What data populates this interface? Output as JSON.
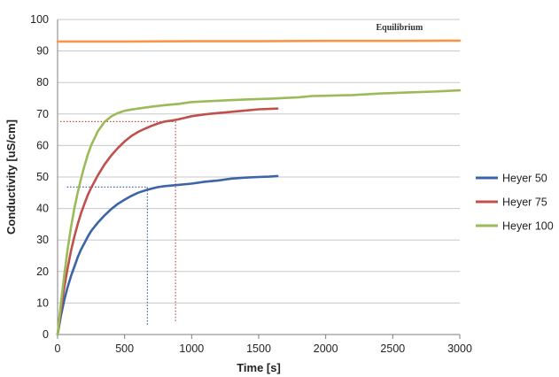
{
  "chart_data": {
    "type": "line",
    "title": "",
    "xlabel": "Time [s]",
    "ylabel": "Conductivity [uS/cm]",
    "xlim": [
      0,
      3000
    ],
    "ylim": [
      0,
      100
    ],
    "x_ticks": [
      0,
      500,
      1000,
      1500,
      2000,
      2500,
      3000
    ],
    "y_ticks": [
      0,
      10,
      20,
      30,
      40,
      50,
      60,
      70,
      80,
      90,
      100
    ],
    "grid": "horizontal",
    "legend_position": "right",
    "series": [
      {
        "name": "Heyer 50",
        "color": "#3b65a8",
        "points": [
          [
            0,
            0
          ],
          [
            25,
            6
          ],
          [
            50,
            11
          ],
          [
            75,
            15
          ],
          [
            100,
            18.5
          ],
          [
            125,
            21.5
          ],
          [
            150,
            24.5
          ],
          [
            175,
            27
          ],
          [
            200,
            29
          ],
          [
            225,
            31
          ],
          [
            250,
            32.8
          ],
          [
            300,
            35.5
          ],
          [
            350,
            37.8
          ],
          [
            400,
            39.8
          ],
          [
            450,
            41.5
          ],
          [
            500,
            42.8
          ],
          [
            550,
            44
          ],
          [
            600,
            45
          ],
          [
            650,
            45.7
          ],
          [
            700,
            46.3
          ],
          [
            750,
            46.8
          ],
          [
            800,
            47.1
          ],
          [
            900,
            47.5
          ],
          [
            1000,
            47.9
          ],
          [
            1100,
            48.5
          ],
          [
            1200,
            48.9
          ],
          [
            1300,
            49.5
          ],
          [
            1400,
            49.8
          ],
          [
            1500,
            50
          ],
          [
            1580,
            50.1
          ],
          [
            1640,
            50.3
          ]
        ]
      },
      {
        "name": "Heyer 75",
        "color": "#c0504d",
        "points": [
          [
            0,
            0
          ],
          [
            25,
            8
          ],
          [
            50,
            15
          ],
          [
            75,
            21
          ],
          [
            100,
            26.5
          ],
          [
            125,
            31
          ],
          [
            150,
            35
          ],
          [
            175,
            38.5
          ],
          [
            200,
            41.5
          ],
          [
            225,
            44.2
          ],
          [
            250,
            46.5
          ],
          [
            300,
            50.5
          ],
          [
            350,
            54
          ],
          [
            400,
            56.8
          ],
          [
            450,
            59.2
          ],
          [
            500,
            61.3
          ],
          [
            550,
            63
          ],
          [
            600,
            64.3
          ],
          [
            650,
            65.3
          ],
          [
            700,
            66.2
          ],
          [
            750,
            67
          ],
          [
            800,
            67.6
          ],
          [
            850,
            67.9
          ],
          [
            900,
            68.3
          ],
          [
            950,
            68.8
          ],
          [
            1000,
            69.3
          ],
          [
            1100,
            69.9
          ],
          [
            1200,
            70.3
          ],
          [
            1300,
            70.7
          ],
          [
            1400,
            71.1
          ],
          [
            1500,
            71.5
          ],
          [
            1640,
            71.7
          ]
        ]
      },
      {
        "name": "Heyer 100",
        "color": "#9bbb59",
        "points": [
          [
            0,
            0
          ],
          [
            25,
            10
          ],
          [
            50,
            19
          ],
          [
            75,
            27
          ],
          [
            100,
            34
          ],
          [
            125,
            40
          ],
          [
            150,
            45
          ],
          [
            175,
            49.5
          ],
          [
            200,
            53.5
          ],
          [
            225,
            57
          ],
          [
            250,
            60
          ],
          [
            300,
            64.5
          ],
          [
            350,
            67.5
          ],
          [
            400,
            69.2
          ],
          [
            450,
            70.3
          ],
          [
            500,
            71
          ],
          [
            550,
            71.4
          ],
          [
            600,
            71.7
          ],
          [
            700,
            72.3
          ],
          [
            800,
            72.8
          ],
          [
            900,
            73.2
          ],
          [
            1000,
            73.8
          ],
          [
            1200,
            74.2
          ],
          [
            1400,
            74.6
          ],
          [
            1600,
            74.9
          ],
          [
            1800,
            75.3
          ],
          [
            1900,
            75.7
          ],
          [
            2000,
            75.8
          ],
          [
            2200,
            76
          ],
          [
            2400,
            76.5
          ],
          [
            2600,
            76.8
          ],
          [
            2800,
            77.1
          ],
          [
            3000,
            77.5
          ]
        ]
      },
      {
        "name": "Equilibrium",
        "color": "#f79646",
        "points": [
          [
            0,
            93
          ],
          [
            500,
            93
          ],
          [
            1000,
            93.1
          ],
          [
            1500,
            93.1
          ],
          [
            2000,
            93.2
          ],
          [
            2500,
            93.2
          ],
          [
            3000,
            93.3
          ]
        ]
      }
    ],
    "reference_lines": [
      {
        "series": "Heyer 50",
        "color": "#3b65a8",
        "x": 670,
        "y": 46.8,
        "x_from": 70,
        "y_from": 3
      },
      {
        "series": "Heyer 75",
        "color": "#c0504d",
        "x": 880,
        "y": 67.6,
        "x_from": 20,
        "y_from": 4
      }
    ],
    "annotations": [
      {
        "text": "Equilibrium",
        "x": 2550,
        "y": 97.5
      }
    ]
  },
  "legend": {
    "items": [
      {
        "name": "Heyer 50",
        "color": "#3b65a8"
      },
      {
        "name": "Heyer 75",
        "color": "#c0504d"
      },
      {
        "name": "Heyer 100",
        "color": "#9bbb59"
      }
    ]
  }
}
